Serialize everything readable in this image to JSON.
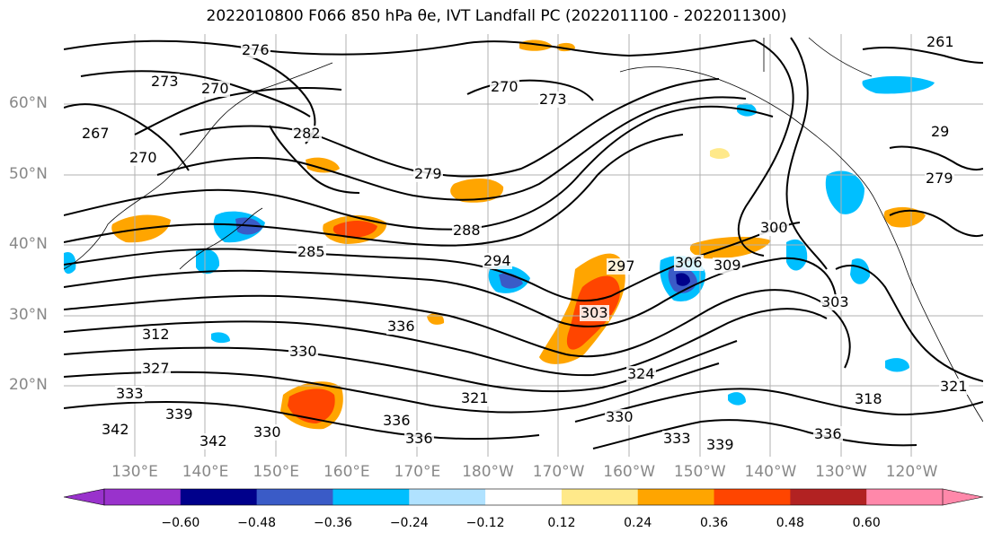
{
  "title": "2022010800 F066 850 hPa θe, IVT Landfall PC (2022011100 - 2022011300)",
  "lat_labels": [
    "60°N",
    "50°N",
    "40°N",
    "30°N",
    "20°N"
  ],
  "lon_labels": [
    "130°E",
    "140°E",
    "150°E",
    "160°E",
    "170°E",
    "180°W",
    "170°W",
    "160°W",
    "150°W",
    "140°W",
    "130°W",
    "120°W"
  ],
  "colorbar": {
    "colors": [
      "#9932CC",
      "#00008B",
      "#3A5BC7",
      "#00BFFF",
      "#B0E2FF",
      "#FFFFFF",
      "#FFE98A",
      "#FFA500",
      "#FF4500",
      "#B22222",
      "#FF88AA"
    ],
    "tick_labels": [
      "−0.60",
      "−0.48",
      "−0.36",
      "−0.24",
      "−0.12",
      "0.12",
      "0.24",
      "0.36",
      "0.48",
      "0.60"
    ]
  },
  "contour_labels": [
    "276",
    "273",
    "270",
    "270",
    "267",
    "282",
    "270",
    "273",
    "279",
    "261",
    "29",
    "279",
    "288",
    "285",
    "294",
    "297",
    "306",
    "309",
    "300",
    "303",
    "303",
    "312",
    "327",
    "330",
    "333",
    "339",
    "342",
    "342",
    "330",
    "336",
    "336",
    "324",
    "321",
    "321",
    "330",
    "333",
    "339",
    "318",
    "336",
    "336"
  ],
  "chart_data": {
    "type": "map",
    "title": "2022010800 F066 850 hPa θe, IVT Landfall PC (2022011100 - 2022011300)",
    "lon_range": [
      "~122°E",
      "~116°W"
    ],
    "lat_range": [
      "~10°N",
      "~70°N"
    ],
    "grid": true,
    "contour_field": "850 hPa θe (K)",
    "contour_values": [
      261,
      267,
      270,
      273,
      276,
      279,
      282,
      285,
      288,
      294,
      297,
      300,
      303,
      306,
      309,
      312,
      318,
      321,
      324,
      327,
      330,
      333,
      336,
      339,
      342
    ],
    "shaded_field": "IVT Landfall PC",
    "colorbar_levels": [
      -0.6,
      -0.48,
      -0.36,
      -0.24,
      -0.12,
      0.12,
      0.24,
      0.36,
      0.48,
      0.6
    ],
    "colorbar_extend": "both"
  }
}
